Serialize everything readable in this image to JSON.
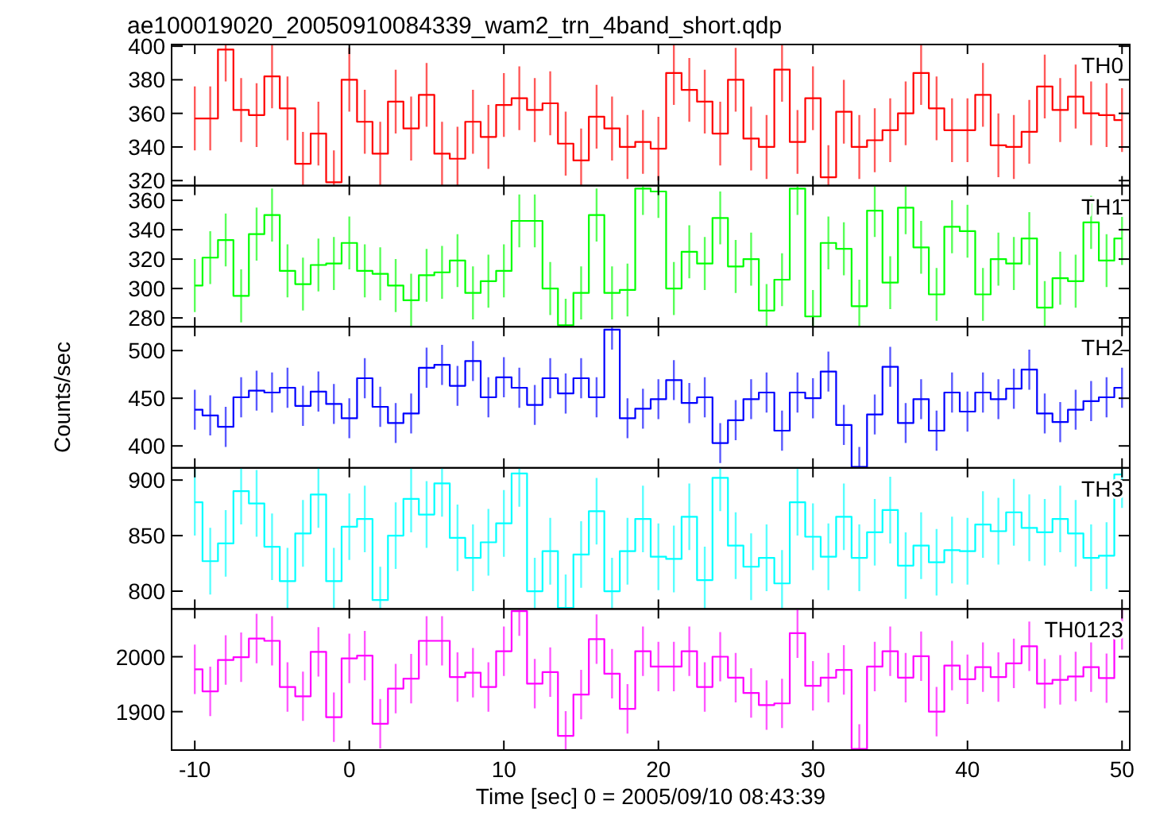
{
  "chart_data": [
    {
      "type": "step",
      "title": "ae100019020_20050910084339_wam2_trn_4band_short.qdp",
      "x": [
        -10,
        -9,
        -8,
        -7,
        -6,
        -5,
        -4,
        -3,
        -2,
        -1,
        0,
        1,
        2,
        3,
        4,
        5,
        6,
        7,
        8,
        9,
        10,
        11,
        12,
        13,
        14,
        15,
        16,
        17,
        18,
        19,
        20,
        21,
        22,
        23,
        24,
        25,
        26,
        27,
        28,
        29,
        30,
        31,
        32,
        33,
        34,
        35,
        36,
        37,
        38,
        39,
        40,
        41,
        42,
        43,
        44,
        45,
        46,
        47,
        48,
        49,
        50
      ],
      "xlim": [
        -11.5,
        50.5
      ],
      "xticks": [
        -10,
        0,
        10,
        20,
        30,
        40,
        50
      ],
      "ylim": [
        317,
        401
      ],
      "yticks": [
        320,
        340,
        360,
        380,
        400
      ],
      "tick_labels": "y",
      "legend": "top right",
      "grid": false,
      "series": [
        {
          "name": "TH0",
          "color": "#ff0000",
          "values": [
            357,
            357,
            398,
            362,
            359,
            382,
            363,
            330,
            348,
            319,
            380,
            355,
            336,
            367,
            351,
            371,
            336,
            333,
            355,
            346,
            365,
            369,
            362,
            366,
            342,
            332,
            358,
            351,
            340,
            343,
            339,
            384,
            374,
            367,
            348,
            380,
            345,
            340,
            386,
            343,
            369,
            322,
            361,
            340,
            344,
            350,
            360,
            384,
            363,
            350,
            350,
            371,
            341,
            340,
            349,
            376,
            362,
            370,
            360,
            359,
            356
          ],
          "errors": [
            19,
            19,
            19,
            19,
            19,
            19,
            19,
            19,
            19,
            19,
            19,
            19,
            19,
            19,
            19,
            19,
            19,
            19,
            19,
            19,
            19,
            19,
            19,
            19,
            19,
            19,
            19,
            19,
            19,
            19,
            19,
            19,
            19,
            19,
            19,
            19,
            19,
            19,
            19,
            19,
            19,
            19,
            19,
            19,
            19,
            19,
            19,
            19,
            19,
            19,
            19,
            19,
            19,
            19,
            19,
            19,
            19,
            19,
            19,
            19,
            19
          ]
        }
      ]
    },
    {
      "type": "step",
      "x": [
        -10,
        -9,
        -8,
        -7,
        -6,
        -5,
        -4,
        -3,
        -2,
        -1,
        0,
        1,
        2,
        3,
        4,
        5,
        6,
        7,
        8,
        9,
        10,
        11,
        12,
        13,
        14,
        15,
        16,
        17,
        18,
        19,
        20,
        21,
        22,
        23,
        24,
        25,
        26,
        27,
        28,
        29,
        30,
        31,
        32,
        33,
        34,
        35,
        36,
        37,
        38,
        39,
        40,
        41,
        42,
        43,
        44,
        45,
        46,
        47,
        48,
        49,
        50
      ],
      "xlim": [
        -11.5,
        50.5
      ],
      "xticks": [
        -10,
        0,
        10,
        20,
        30,
        40,
        50
      ],
      "ylim": [
        274,
        370
      ],
      "yticks": [
        280,
        300,
        320,
        340,
        360
      ],
      "tick_labels": "y",
      "legend": "top right",
      "grid": false,
      "series": [
        {
          "name": "TH1",
          "color": "#00ff00",
          "values": [
            302,
            321,
            333,
            295,
            337,
            350,
            312,
            303,
            316,
            317,
            331,
            312,
            310,
            302,
            292,
            309,
            311,
            319,
            297,
            305,
            312,
            346,
            346,
            300,
            275,
            297,
            350,
            297,
            299,
            368,
            366,
            300,
            325,
            317,
            348,
            315,
            320,
            285,
            306,
            368,
            281,
            331,
            327,
            288,
            353,
            304,
            355,
            328,
            296,
            342,
            339,
            296,
            320,
            317,
            334,
            287,
            307,
            305,
            345,
            319,
            334
          ],
          "errors": [
            18,
            18,
            18,
            18,
            18,
            18,
            18,
            18,
            18,
            18,
            18,
            18,
            18,
            18,
            18,
            18,
            18,
            18,
            18,
            18,
            18,
            18,
            18,
            18,
            18,
            18,
            18,
            18,
            18,
            18,
            18,
            18,
            18,
            18,
            18,
            18,
            18,
            18,
            18,
            18,
            18,
            18,
            18,
            18,
            18,
            18,
            18,
            18,
            18,
            18,
            18,
            18,
            18,
            18,
            18,
            18,
            18,
            18,
            18,
            18,
            18
          ]
        }
      ]
    },
    {
      "type": "step",
      "ylabel": "Counts/sec",
      "x": [
        -10,
        -9,
        -8,
        -7,
        -6,
        -5,
        -4,
        -3,
        -2,
        -1,
        0,
        1,
        2,
        3,
        4,
        5,
        6,
        7,
        8,
        9,
        10,
        11,
        12,
        13,
        14,
        15,
        16,
        17,
        18,
        19,
        20,
        21,
        22,
        23,
        24,
        25,
        26,
        27,
        28,
        29,
        30,
        31,
        32,
        33,
        34,
        35,
        36,
        37,
        38,
        39,
        40,
        41,
        42,
        43,
        44,
        45,
        46,
        47,
        48,
        49,
        50
      ],
      "xlim": [
        -11.5,
        50.5
      ],
      "xticks": [
        -10,
        0,
        10,
        20,
        30,
        40,
        50
      ],
      "ylim": [
        377,
        525
      ],
      "yticks": [
        400,
        450,
        500
      ],
      "tick_labels": "y",
      "legend": "top right",
      "grid": false,
      "series": [
        {
          "name": "TH2",
          "color": "#0000ff",
          "values": [
            438,
            432,
            420,
            451,
            458,
            456,
            461,
            442,
            457,
            444,
            429,
            471,
            441,
            424,
            434,
            482,
            485,
            463,
            489,
            451,
            472,
            461,
            443,
            471,
            455,
            471,
            451,
            522,
            429,
            439,
            449,
            469,
            445,
            451,
            403,
            427,
            449,
            456,
            416,
            456,
            450,
            478,
            422,
            378,
            433,
            483,
            424,
            449,
            416,
            456,
            436,
            456,
            449,
            460,
            480,
            434,
            425,
            438,
            447,
            451,
            461
          ],
          "errors": [
            21,
            21,
            21,
            21,
            21,
            21,
            21,
            21,
            21,
            21,
            21,
            21,
            21,
            21,
            21,
            21,
            21,
            21,
            21,
            21,
            21,
            21,
            21,
            21,
            21,
            21,
            21,
            21,
            21,
            21,
            21,
            21,
            21,
            21,
            21,
            21,
            21,
            21,
            21,
            21,
            21,
            21,
            21,
            21,
            21,
            21,
            21,
            21,
            21,
            21,
            21,
            21,
            21,
            21,
            21,
            21,
            21,
            21,
            21,
            21,
            21
          ]
        }
      ]
    },
    {
      "type": "step",
      "x": [
        -10,
        -9,
        -8,
        -7,
        -6,
        -5,
        -4,
        -3,
        -2,
        -1,
        0,
        1,
        2,
        3,
        4,
        5,
        6,
        7,
        8,
        9,
        10,
        11,
        12,
        13,
        14,
        15,
        16,
        17,
        18,
        19,
        20,
        21,
        22,
        23,
        24,
        25,
        26,
        27,
        28,
        29,
        30,
        31,
        32,
        33,
        34,
        35,
        36,
        37,
        38,
        39,
        40,
        41,
        42,
        43,
        44,
        45,
        46,
        47,
        48,
        49,
        50
      ],
      "xlim": [
        -11.5,
        50.5
      ],
      "xticks": [
        -10,
        0,
        10,
        20,
        30,
        40,
        50
      ],
      "ylim": [
        784,
        911
      ],
      "yticks": [
        800,
        850,
        900
      ],
      "tick_labels": "y",
      "legend": "top right",
      "grid": false,
      "series": [
        {
          "name": "TH3",
          "color": "#00ffff",
          "values": [
            880,
            827,
            843,
            890,
            879,
            840,
            809,
            852,
            887,
            809,
            858,
            865,
            792,
            850,
            883,
            869,
            897,
            848,
            830,
            844,
            861,
            906,
            800,
            836,
            785,
            833,
            872,
            800,
            836,
            865,
            831,
            829,
            867,
            810,
            902,
            841,
            822,
            830,
            807,
            880,
            849,
            831,
            867,
            830,
            853,
            873,
            823,
            841,
            826,
            837,
            836,
            860,
            854,
            871,
            857,
            853,
            865,
            852,
            830,
            832,
            905
          ],
          "errors": [
            30,
            30,
            30,
            30,
            30,
            30,
            30,
            30,
            30,
            30,
            30,
            30,
            30,
            30,
            30,
            30,
            30,
            30,
            30,
            30,
            30,
            30,
            30,
            30,
            30,
            30,
            30,
            30,
            30,
            30,
            30,
            30,
            30,
            30,
            30,
            30,
            30,
            30,
            30,
            30,
            30,
            30,
            30,
            30,
            30,
            30,
            30,
            30,
            30,
            30,
            30,
            30,
            30,
            30,
            30,
            30,
            30,
            30,
            30,
            30,
            30
          ]
        }
      ]
    },
    {
      "type": "step",
      "xlabel": "Time [sec] 0 = 2005/09/10 08:43:39",
      "x": [
        -10,
        -9,
        -8,
        -7,
        -6,
        -5,
        -4,
        -3,
        -2,
        -1,
        0,
        1,
        2,
        3,
        4,
        5,
        6,
        7,
        8,
        9,
        10,
        11,
        12,
        13,
        14,
        15,
        16,
        17,
        18,
        19,
        20,
        21,
        22,
        23,
        24,
        25,
        26,
        27,
        28,
        29,
        30,
        31,
        32,
        33,
        34,
        35,
        36,
        37,
        38,
        39,
        40,
        41,
        42,
        43,
        44,
        45,
        46,
        47,
        48,
        49,
        50
      ],
      "xlim": [
        -11.5,
        50.5
      ],
      "xticks": [
        -10,
        0,
        10,
        20,
        30,
        40,
        50
      ],
      "ylim": [
        1830,
        2087
      ],
      "yticks": [
        1900,
        2000
      ],
      "legend": "top right",
      "grid": false,
      "series": [
        {
          "name": "TH0123",
          "color": "#ff00ff",
          "values": [
            1977,
            1937,
            1994,
            1999,
            2033,
            2029,
            1945,
            1928,
            2009,
            1890,
            1997,
            2002,
            1878,
            1942,
            1960,
            2029,
            2029,
            1963,
            1971,
            1945,
            2010,
            2083,
            1951,
            1972,
            1856,
            1931,
            2032,
            1969,
            1905,
            2010,
            1982,
            1982,
            2010,
            1945,
            2000,
            1962,
            1934,
            1912,
            1915,
            2043,
            1947,
            1962,
            1976,
            1832,
            1982,
            2010,
            1962,
            2001,
            1900,
            1984,
            1959,
            1981,
            1963,
            1988,
            2019,
            1951,
            1958,
            1964,
            1981,
            1961,
            2058
          ],
          "errors": [
            45,
            45,
            45,
            45,
            45,
            45,
            45,
            45,
            45,
            45,
            45,
            45,
            45,
            45,
            45,
            45,
            45,
            45,
            45,
            45,
            45,
            45,
            45,
            45,
            45,
            45,
            45,
            45,
            45,
            45,
            45,
            45,
            45,
            45,
            45,
            45,
            45,
            45,
            45,
            45,
            45,
            45,
            45,
            45,
            45,
            45,
            45,
            45,
            45,
            45,
            45,
            45,
            45,
            45,
            45,
            45,
            45,
            45,
            45,
            45,
            45
          ]
        }
      ]
    }
  ]
}
